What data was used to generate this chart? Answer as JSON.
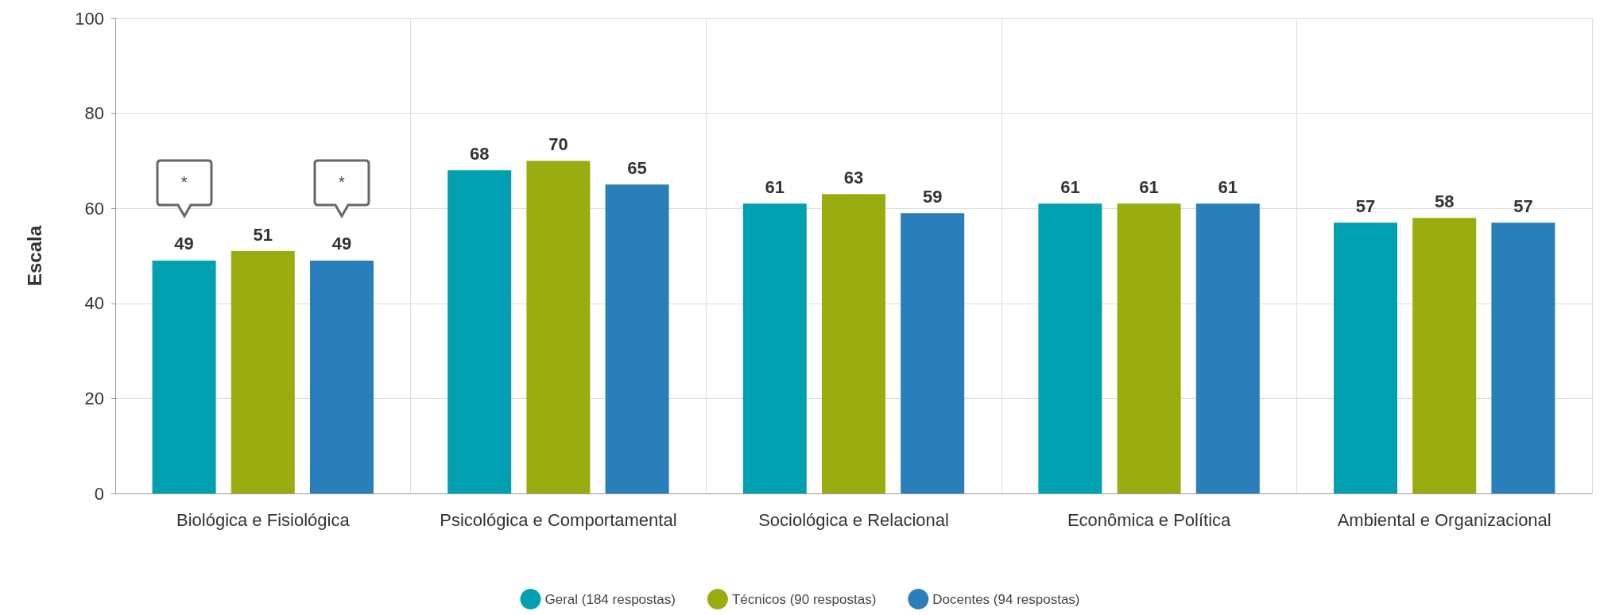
{
  "chart_data": {
    "type": "bar",
    "ylabel": "Escala",
    "categories": [
      "Biológica e Fisiológica",
      "Psicológica e Comportamental",
      "Sociológica e Relacional",
      "Econômica e Política",
      "Ambiental e Organizacional"
    ],
    "series": [
      {
        "name": "Geral (184 respostas)",
        "color": "#00a0b0",
        "values": [
          49,
          68,
          61,
          61,
          57
        ]
      },
      {
        "name": "Técnicos (90 respostas)",
        "color": "#9aad10",
        "values": [
          51,
          70,
          63,
          61,
          58
        ]
      },
      {
        "name": "Docentes (94 respostas)",
        "color": "#2a7fba",
        "values": [
          49,
          65,
          59,
          61,
          57
        ]
      }
    ],
    "ylim": [
      0,
      100
    ],
    "yticks": [
      0,
      20,
      40,
      60,
      80,
      100
    ],
    "grid": true,
    "legend": "bottom",
    "data_labels": true,
    "annotations": [
      "*",
      "*"
    ]
  }
}
